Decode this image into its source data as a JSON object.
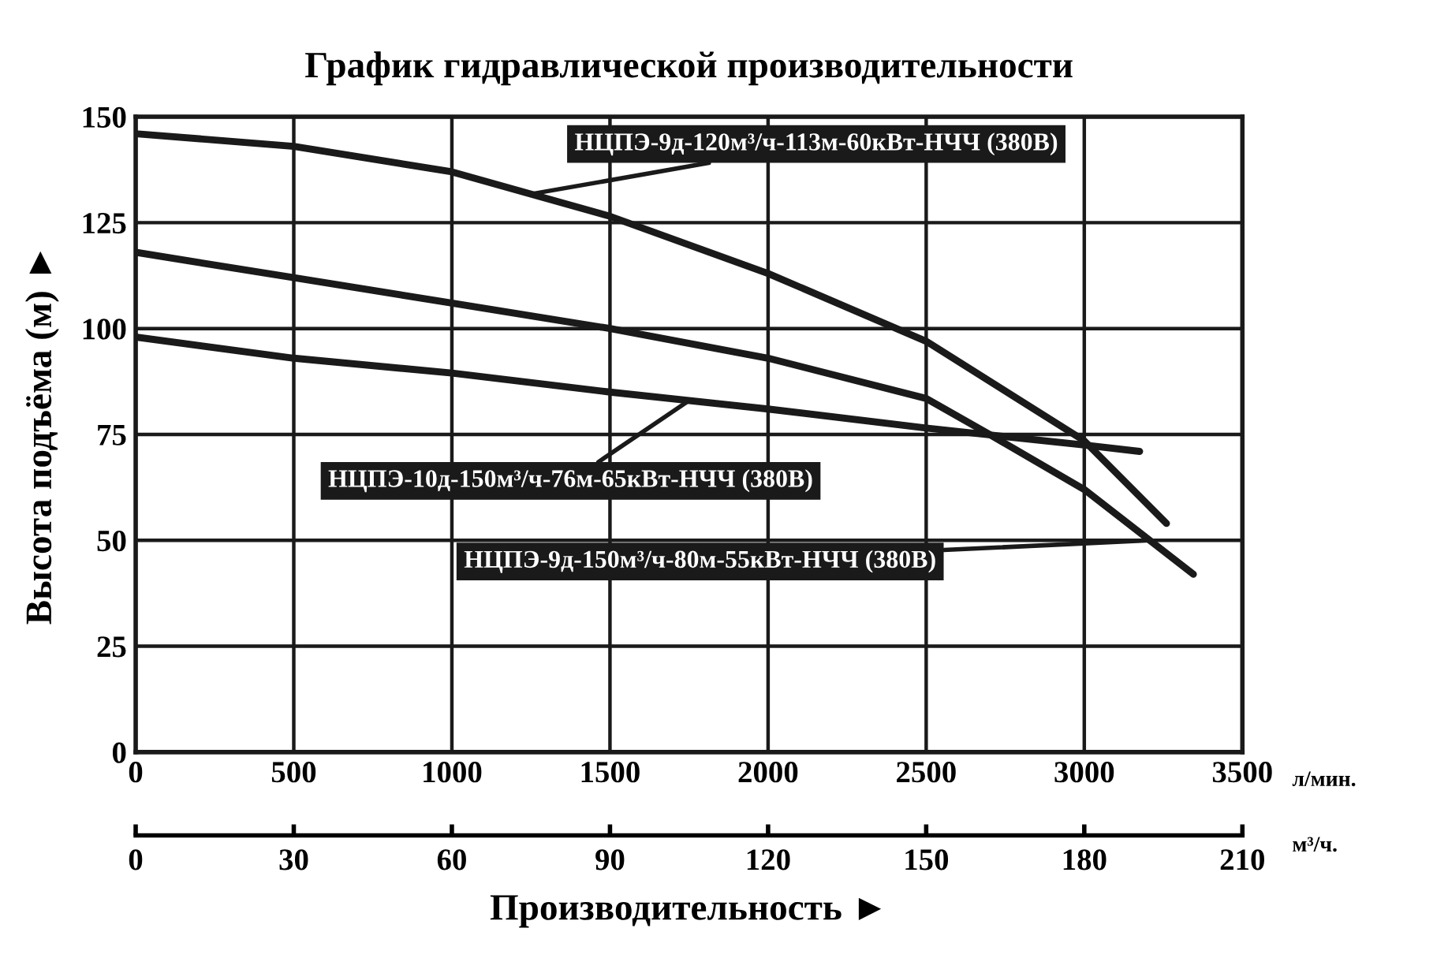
{
  "chart_data": {
    "type": "line",
    "title": "График гидравлической производительности",
    "xlabel": "Производительность ►",
    "ylabel": "Высота подъёма (м) ►",
    "xlim": [
      0,
      3500
    ],
    "xticks": [
      0,
      500,
      1000,
      1500,
      2000,
      2500,
      3000,
      3500
    ],
    "x2lim": [
      0,
      210
    ],
    "x2ticks": [
      0,
      30,
      60,
      90,
      120,
      150,
      180,
      210
    ],
    "ylim": [
      0,
      150
    ],
    "yticks": [
      0,
      25,
      50,
      75,
      100,
      125,
      150
    ],
    "grid": true,
    "legend": false,
    "marker": "none",
    "line_style": "solid",
    "annotations": [
      "л/мин.",
      "м³/ч."
    ],
    "series": [
      {
        "name": "НЦПЭ-9д-120м³/ч-113м-60кВт-НЧЧ (380В)",
        "color": "#1a1a1a",
        "x": [
          0,
          500,
          1000,
          1500,
          2000,
          2500,
          3000,
          3260
        ],
        "values": [
          146,
          143,
          137,
          126.5,
          113,
          97,
          73.5,
          54
        ]
      },
      {
        "name": "НЦПЭ-9д-150м³/ч-80м-55кВт-НЧЧ (380В)",
        "color": "#1a1a1a",
        "x": [
          0,
          500,
          1000,
          1500,
          2000,
          2500,
          2700,
          3000,
          3345
        ],
        "values": [
          118,
          112,
          106,
          100,
          93,
          83.5,
          75,
          62,
          42
        ]
      },
      {
        "name": "НЦПЭ-10д-150м³/ч-76м-65кВт-НЧЧ (380В)",
        "color": "#1a1a1a",
        "x": [
          0,
          500,
          1000,
          1500,
          2000,
          2500,
          3000,
          3175
        ],
        "values": [
          98,
          93,
          89.5,
          85,
          81,
          76.5,
          72.5,
          71
        ]
      }
    ]
  }
}
